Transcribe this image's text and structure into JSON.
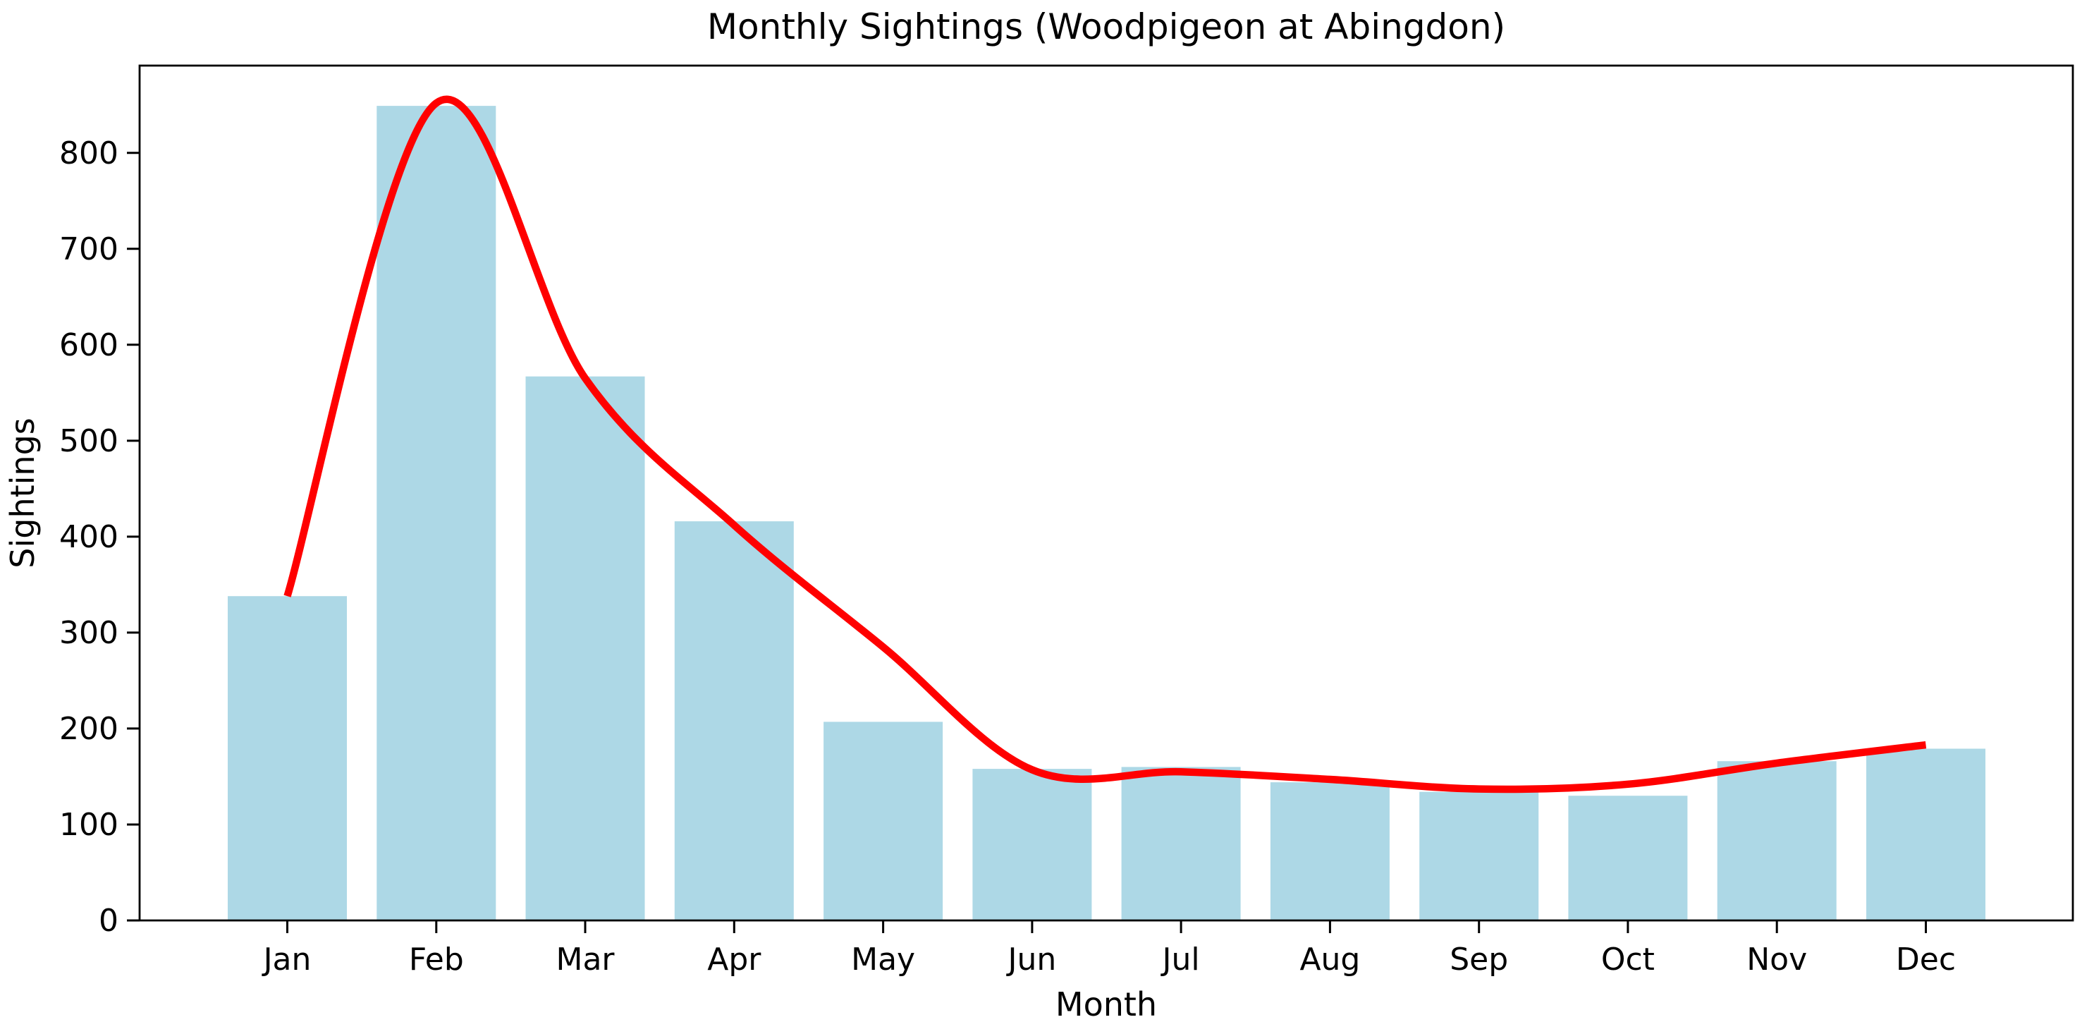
{
  "figure": {
    "background": "#ffffff",
    "text_color": "#000000",
    "spine_color": "#000000"
  },
  "chart_data": {
    "type": "bar",
    "title": "Monthly Sightings (Woodpigeon at Abingdon)",
    "xlabel": "Month",
    "ylabel": "Sightings",
    "categories": [
      "Jan",
      "Feb",
      "Mar",
      "Apr",
      "May",
      "Jun",
      "Jul",
      "Aug",
      "Sep",
      "Oct",
      "Nov",
      "Dec"
    ],
    "series": [
      {
        "name": "monthly-sightings-bars",
        "type": "bar",
        "color": "#ADD8E6",
        "values": [
          338,
          849,
          567,
          416,
          207,
          158,
          160,
          144,
          134,
          130,
          166,
          179
        ]
      },
      {
        "name": "smoothed-trend-line",
        "type": "line",
        "color": "#FF0000",
        "values": [
          338,
          852,
          565,
          412,
          285,
          157,
          155,
          147,
          137,
          142,
          164,
          183
        ]
      }
    ],
    "ylim": [
      0,
      891
    ],
    "yticks": [
      0,
      100,
      200,
      300,
      400,
      500,
      600,
      700,
      800
    ],
    "grid": false,
    "legend_position": "none"
  }
}
